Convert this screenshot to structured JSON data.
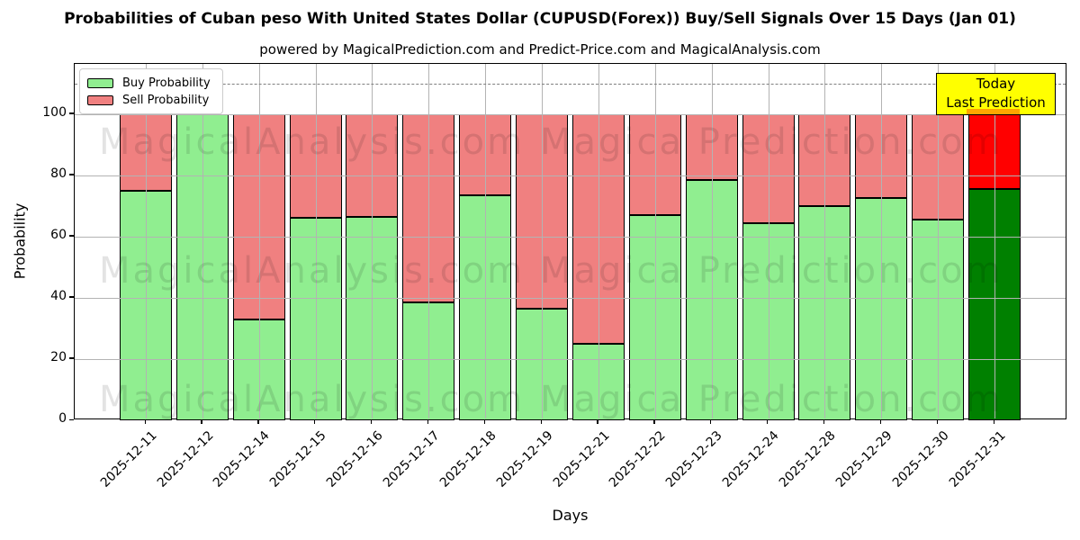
{
  "title": "Probabilities of Cuban peso With United States Dollar (CUPUSD(Forex)) Buy/Sell Signals Over 15 Days (Jan 01)",
  "subtitle": "powered by MagicalPrediction.com and Predict-Price.com and MagicalAnalysis.com",
  "annotation": {
    "line1": "Today",
    "line2": "Last Prediction",
    "box_color": "#ffff00",
    "border_color": "#000000",
    "overlap_color": "#ffa500"
  },
  "legend": {
    "items": [
      {
        "label": "Buy Probability",
        "color": "#90EE90"
      },
      {
        "label": "Sell Probability",
        "color": "#F08080"
      }
    ]
  },
  "watermarks": {
    "left_text": "MagicalAnalysis.com",
    "right_text": "Magica Prediction.com"
  },
  "chart_data": {
    "type": "bar",
    "stacked": true,
    "title": "Probabilities of Cuban peso With United States Dollar (CUPUSD(Forex)) Buy/Sell Signals Over 15 Days (Jan 01)",
    "xlabel": "Days",
    "ylabel": "Probability",
    "categories": [
      "2025-12-11",
      "2025-12-12",
      "2025-12-14",
      "2025-12-15",
      "2025-12-16",
      "2025-12-17",
      "2025-12-18",
      "2025-12-19",
      "2025-12-21",
      "2025-12-22",
      "2025-12-23",
      "2025-12-24",
      "2025-12-28",
      "2025-12-29",
      "2025-12-30",
      "2025-12-31"
    ],
    "series": [
      {
        "name": "Buy Probability",
        "color": "#90EE90",
        "final_color": "#008000",
        "values": [
          75,
          100,
          33,
          66,
          66.5,
          38.5,
          73.5,
          36.5,
          25,
          67,
          78.5,
          64.5,
          70,
          72.5,
          65.5,
          75.5
        ]
      },
      {
        "name": "Sell Probability",
        "color": "#F08080",
        "final_color": "#FF0000",
        "values": [
          25,
          0,
          67,
          34,
          33.5,
          61.5,
          26.5,
          63.5,
          75,
          33,
          21.5,
          35.5,
          30,
          27.5,
          34.5,
          24.5
        ]
      }
    ],
    "yticks": [
      0,
      20,
      40,
      60,
      80,
      100
    ],
    "ylim": [
      0,
      116.4
    ],
    "dashed_line_y": 110,
    "grid": true,
    "grid_over_bars": true,
    "legend_position": "upper left",
    "bar_edge_color": "#000000"
  }
}
